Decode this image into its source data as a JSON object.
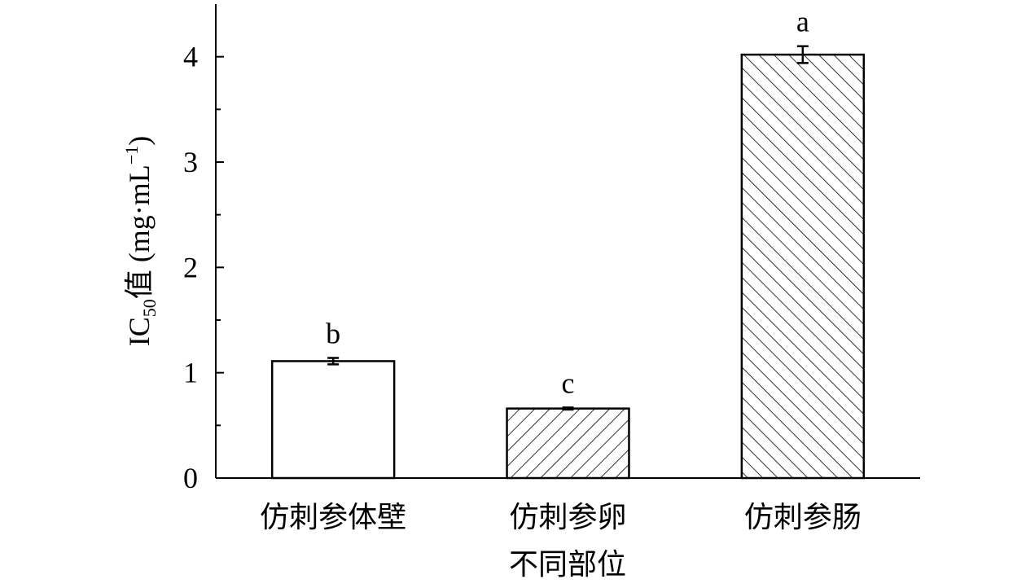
{
  "chart_data": {
    "type": "bar",
    "categories": [
      "仿刺参体壁",
      "仿刺参卵",
      "仿刺参肠"
    ],
    "values": [
      1.11,
      0.66,
      4.02
    ],
    "errors": [
      0.03,
      0.01,
      0.08
    ],
    "annotations": [
      "b",
      "c",
      "a"
    ],
    "hatch": [
      "none",
      "/",
      "\\"
    ],
    "color": "#ffffff",
    "edgecolor": "#000000",
    "xlabel": "不同部位",
    "ylabel": [
      "IC",
      "50",
      "值 (mg·mL",
      "−1",
      ")"
    ],
    "ylim": [
      0,
      4.5
    ],
    "yticks": [
      0,
      1,
      2,
      3,
      4
    ],
    "grid": false
  }
}
